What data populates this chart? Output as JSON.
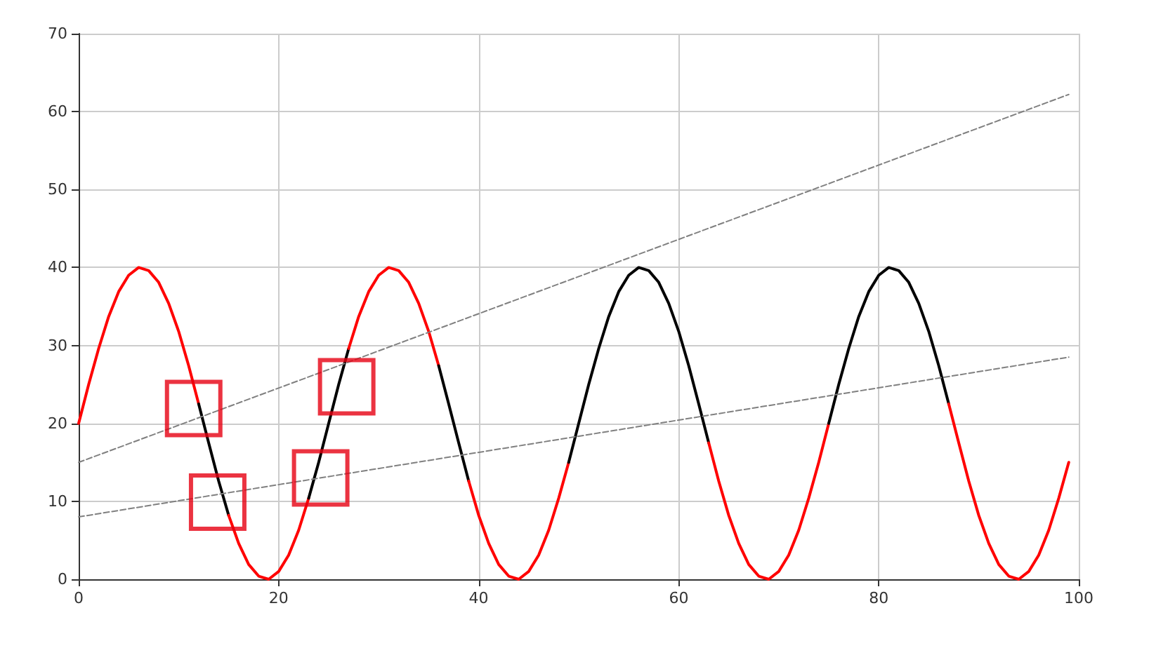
{
  "chart_data": {
    "type": "line",
    "xlim": [
      0,
      100
    ],
    "xticks": [
      0,
      20,
      40,
      60,
      80,
      100
    ],
    "ylim": [
      0,
      70
    ],
    "yticks": [
      0,
      10,
      20,
      30,
      40,
      50,
      60,
      70
    ],
    "grid": true,
    "marker": "none",
    "line_style": "solid",
    "series": [
      {
        "color": "#ff0000",
        "x": [
          0,
          1,
          2,
          3,
          4,
          5,
          6,
          7,
          8,
          9,
          10,
          11,
          12
        ],
        "values": [
          20,
          25,
          29.6,
          33.7,
          36.9,
          39,
          40,
          39.6,
          38.1,
          35.4,
          31.8,
          27.4,
          22.5
        ]
      },
      {
        "color": "#000000",
        "x": [
          12,
          13,
          14,
          15
        ],
        "values": [
          22.5,
          17.5,
          12.6,
          8.2
        ]
      },
      {
        "color": "#ff0000",
        "x": [
          15,
          16,
          17,
          18,
          19,
          20,
          21,
          22,
          23
        ],
        "values": [
          8.2,
          4.6,
          1.9,
          0.4,
          0,
          1,
          3.1,
          6.3,
          10.4
        ]
      },
      {
        "color": "#000000",
        "x": [
          23,
          24,
          25,
          26,
          27
        ],
        "values": [
          10.4,
          15,
          20,
          25,
          29.6
        ]
      },
      {
        "color": "#ff0000",
        "x": [
          27,
          28,
          29,
          30,
          31,
          32,
          33,
          34,
          35,
          36
        ],
        "values": [
          29.6,
          33.7,
          36.9,
          39,
          40,
          39.6,
          38.1,
          35.4,
          31.8,
          27.4
        ]
      },
      {
        "color": "#000000",
        "x": [
          36,
          37,
          38,
          39
        ],
        "values": [
          27.4,
          22.5,
          17.5,
          12.6
        ]
      },
      {
        "color": "#ff0000",
        "x": [
          39,
          40,
          41,
          42,
          43,
          44,
          45,
          46,
          47,
          48,
          49
        ],
        "values": [
          12.6,
          8.2,
          4.6,
          1.9,
          0.4,
          0,
          1,
          3.1,
          6.3,
          10.4,
          15
        ]
      },
      {
        "color": "#000000",
        "x": [
          49,
          50,
          51,
          52,
          53,
          54,
          55,
          56,
          57,
          58,
          59,
          60,
          61,
          62,
          63
        ],
        "values": [
          15,
          20,
          25,
          29.6,
          33.7,
          36.9,
          39,
          40,
          39.6,
          38.1,
          35.4,
          31.8,
          27.4,
          22.5,
          17.5
        ]
      },
      {
        "color": "#ff0000",
        "x": [
          63,
          64,
          65,
          66,
          67,
          68,
          69,
          70,
          71,
          72,
          73,
          74,
          75
        ],
        "values": [
          17.5,
          12.6,
          8.2,
          4.6,
          1.9,
          0.4,
          0,
          1,
          3.1,
          6.3,
          10.4,
          15,
          20
        ]
      },
      {
        "color": "#000000",
        "x": [
          75,
          76,
          77,
          78,
          79,
          80,
          81,
          82,
          83,
          84,
          85,
          86,
          87
        ],
        "values": [
          20,
          25,
          29.6,
          33.7,
          36.9,
          39,
          40,
          39.6,
          38.1,
          35.4,
          31.8,
          27.4,
          22.5
        ]
      },
      {
        "color": "#ff0000",
        "x": [
          87,
          88,
          89,
          90,
          91,
          92,
          93,
          94,
          95,
          96,
          97,
          98,
          99
        ],
        "values": [
          22.5,
          17.5,
          12.6,
          8.2,
          4.6,
          1.9,
          0.4,
          0,
          1,
          3.1,
          6.3,
          10.4,
          15
        ]
      },
      {
        "color": "#808080",
        "line_style": "dashed",
        "x": [
          0,
          99
        ],
        "values": [
          15,
          62.2
        ]
      },
      {
        "color": "#808080",
        "line_style": "dashed",
        "x": [
          0,
          99
        ],
        "values": [
          8,
          28.5
        ]
      },
      {
        "type": "scatter",
        "marker": "square",
        "color": "#e60012",
        "x": [
          11.5,
          13.9,
          24.2,
          26.8
        ],
        "values": [
          21.9,
          9.9,
          13,
          24.7
        ]
      }
    ]
  }
}
